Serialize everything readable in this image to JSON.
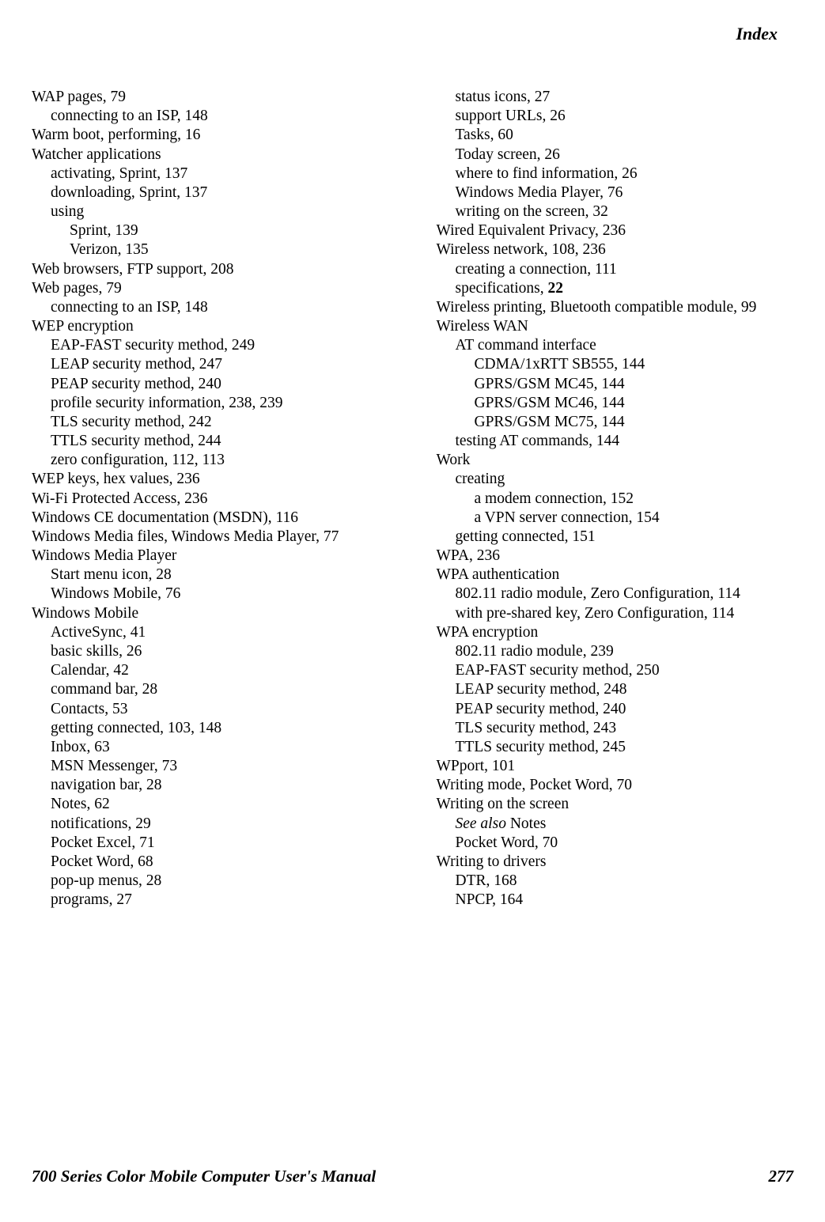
{
  "header": {
    "title": "Index"
  },
  "footer": {
    "manual_title": "700 Series Color Mobile Computer User's Manual",
    "page_number": "277"
  },
  "columns": [
    [
      {
        "lvl": 0,
        "text": "WAP pages, 79"
      },
      {
        "lvl": 1,
        "text": "connecting to an ISP, 148"
      },
      {
        "lvl": 0,
        "text": "Warm boot, performing, 16"
      },
      {
        "lvl": 0,
        "text": "Watcher applications"
      },
      {
        "lvl": 1,
        "text": "activating, Sprint, 137"
      },
      {
        "lvl": 1,
        "text": "downloading, Sprint, 137"
      },
      {
        "lvl": 1,
        "text": "using"
      },
      {
        "lvl": 2,
        "text": "Sprint, 139"
      },
      {
        "lvl": 2,
        "text": "Verizon, 135"
      },
      {
        "lvl": 0,
        "text": "Web browsers, FTP support, 208"
      },
      {
        "lvl": 0,
        "text": "Web pages, 79"
      },
      {
        "lvl": 1,
        "text": "connecting to an ISP, 148"
      },
      {
        "lvl": 0,
        "text": "WEP encryption"
      },
      {
        "lvl": 1,
        "text": "EAP-FAST security method, 249"
      },
      {
        "lvl": 1,
        "text": "LEAP security method, 247"
      },
      {
        "lvl": 1,
        "text": "PEAP security method, 240"
      },
      {
        "lvl": 1,
        "text": "profile security information, 238, 239"
      },
      {
        "lvl": 1,
        "text": "TLS security method, 242"
      },
      {
        "lvl": 1,
        "text": "TTLS security method, 244"
      },
      {
        "lvl": 1,
        "text": "zero configuration, 112, 113"
      },
      {
        "lvl": 0,
        "text": "WEP keys, hex values, 236"
      },
      {
        "lvl": 0,
        "text": "Wi-Fi Protected Access, 236"
      },
      {
        "lvl": 0,
        "text": "Windows CE documentation (MSDN), 116"
      },
      {
        "lvl": 0,
        "text": "Windows Media files, Windows Media Player, 77"
      },
      {
        "lvl": 0,
        "text": "Windows Media Player"
      },
      {
        "lvl": 1,
        "text": "Start menu icon, 28"
      },
      {
        "lvl": 1,
        "text": "Windows Mobile, 76"
      },
      {
        "lvl": 0,
        "text": "Windows Mobile"
      },
      {
        "lvl": 1,
        "text": "ActiveSync, 41"
      },
      {
        "lvl": 1,
        "text": "basic skills, 26"
      },
      {
        "lvl": 1,
        "text": "Calendar, 42"
      },
      {
        "lvl": 1,
        "text": "command bar, 28"
      },
      {
        "lvl": 1,
        "text": "Contacts, 53"
      },
      {
        "lvl": 1,
        "text": "getting connected, 103, 148"
      },
      {
        "lvl": 1,
        "text": "Inbox, 63"
      },
      {
        "lvl": 1,
        "text": "MSN Messenger, 73"
      },
      {
        "lvl": 1,
        "text": "navigation bar, 28"
      },
      {
        "lvl": 1,
        "text": "Notes, 62"
      },
      {
        "lvl": 1,
        "text": "notifications, 29"
      },
      {
        "lvl": 1,
        "text": "Pocket Excel, 71"
      },
      {
        "lvl": 1,
        "text": "Pocket Word, 68"
      },
      {
        "lvl": 1,
        "text": "pop-up menus, 28"
      },
      {
        "lvl": 1,
        "text": "programs, 27"
      }
    ],
    [
      {
        "lvl": 1,
        "text": "status icons, 27"
      },
      {
        "lvl": 1,
        "text": "support URLs, 26"
      },
      {
        "lvl": 1,
        "text": "Tasks, 60"
      },
      {
        "lvl": 1,
        "text": "Today screen, 26"
      },
      {
        "lvl": 1,
        "text": "where to find information, 26"
      },
      {
        "lvl": 1,
        "text": "Windows Media Player, 76"
      },
      {
        "lvl": 1,
        "text": "writing on the screen, 32"
      },
      {
        "lvl": 0,
        "text": "Wired Equivalent Privacy, 236"
      },
      {
        "lvl": 0,
        "text": "Wireless network, 108, 236"
      },
      {
        "lvl": 1,
        "text": "creating a connection, 111"
      },
      {
        "lvl": 1,
        "parts": [
          {
            "text": "specifications, "
          },
          {
            "text": "22",
            "bold": true
          }
        ]
      },
      {
        "lvl": 0,
        "text": "Wireless printing, Bluetooth compatible module, 99"
      },
      {
        "lvl": 0,
        "text": "Wireless WAN"
      },
      {
        "lvl": 1,
        "text": "AT command interface"
      },
      {
        "lvl": 2,
        "text": "CDMA/1xRTT SB555, 144"
      },
      {
        "lvl": 2,
        "text": "GPRS/GSM MC45, 144"
      },
      {
        "lvl": 2,
        "text": "GPRS/GSM MC46, 144"
      },
      {
        "lvl": 2,
        "text": "GPRS/GSM MC75, 144"
      },
      {
        "lvl": 1,
        "text": "testing AT commands, 144"
      },
      {
        "lvl": 0,
        "text": "Work"
      },
      {
        "lvl": 1,
        "text": "creating"
      },
      {
        "lvl": 2,
        "text": "a modem connection, 152"
      },
      {
        "lvl": 2,
        "text": "a VPN server connection, 154"
      },
      {
        "lvl": 1,
        "text": "getting connected, 151"
      },
      {
        "lvl": 0,
        "text": "WPA, 236"
      },
      {
        "lvl": 0,
        "text": "WPA authentication"
      },
      {
        "lvl": 1,
        "text": "802.11 radio module, Zero Configuration, 114"
      },
      {
        "lvl": 1,
        "text": "with pre-shared key, Zero Configuration, 114"
      },
      {
        "lvl": 0,
        "text": "WPA encryption"
      },
      {
        "lvl": 1,
        "text": "802.11 radio module, 239"
      },
      {
        "lvl": 1,
        "text": "EAP-FAST security method, 250"
      },
      {
        "lvl": 1,
        "text": "LEAP security method, 248"
      },
      {
        "lvl": 1,
        "text": "PEAP security method, 240"
      },
      {
        "lvl": 1,
        "text": "TLS security method, 243"
      },
      {
        "lvl": 1,
        "text": "TTLS security method, 245"
      },
      {
        "lvl": 0,
        "text": "WPport, 101"
      },
      {
        "lvl": 0,
        "text": "Writing mode, Pocket Word, 70"
      },
      {
        "lvl": 0,
        "text": "Writing on the screen"
      },
      {
        "lvl": 1,
        "parts": [
          {
            "text": "See also",
            "italic": true
          },
          {
            "text": " Notes"
          }
        ]
      },
      {
        "lvl": 1,
        "text": "Pocket Word, 70"
      },
      {
        "lvl": 0,
        "text": "Writing to drivers"
      },
      {
        "lvl": 1,
        "text": "DTR, 168"
      },
      {
        "lvl": 1,
        "text": "NPCP, 164"
      }
    ]
  ]
}
